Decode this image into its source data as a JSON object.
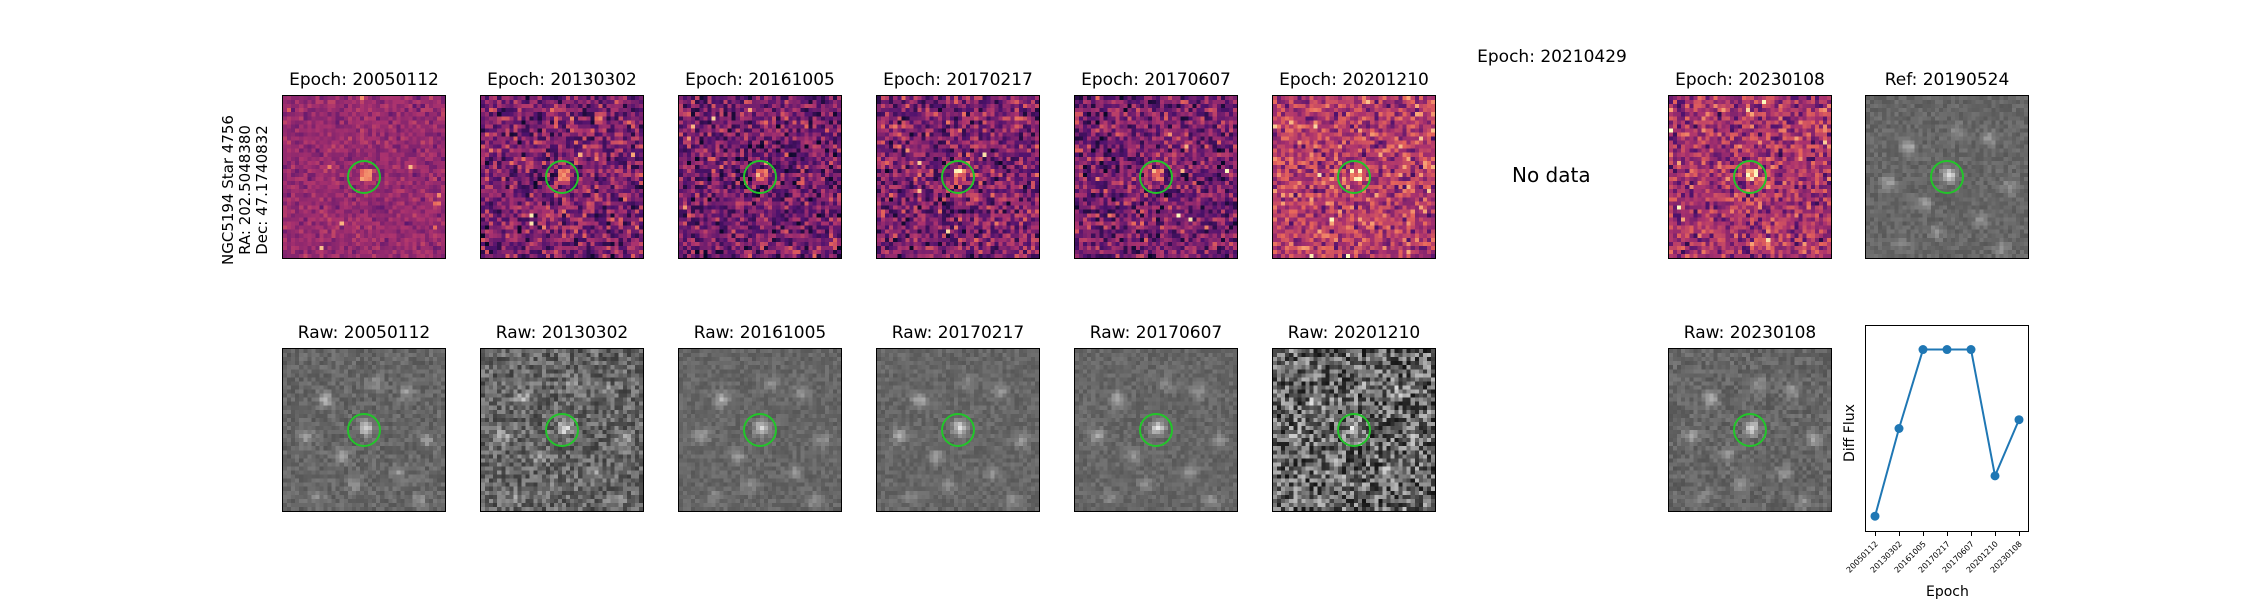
{
  "star_label": {
    "line1": "NGC5194 Star 4756",
    "line2": "RA: 202.5048380",
    "line3": "Dec: 47.1740832"
  },
  "top_row": [
    {
      "title": "Epoch: 20050112",
      "kind": "diff",
      "has_data": true
    },
    {
      "title": "Epoch: 20130302",
      "kind": "diff",
      "has_data": true
    },
    {
      "title": "Epoch: 20161005",
      "kind": "diff",
      "has_data": true
    },
    {
      "title": "Epoch: 20170217",
      "kind": "diff",
      "has_data": true
    },
    {
      "title": "Epoch: 20170607",
      "kind": "diff",
      "has_data": true
    },
    {
      "title": "Epoch: 20201210",
      "kind": "diff",
      "has_data": true
    },
    {
      "title": "Epoch: 20210429",
      "kind": "diff",
      "has_data": false,
      "message": "No data"
    },
    {
      "title": "Epoch: 20230108",
      "kind": "diff",
      "has_data": true
    },
    {
      "title": "Ref: 20190524",
      "kind": "ref",
      "has_data": true
    }
  ],
  "bottom_row": [
    {
      "title": "Raw: 20050112"
    },
    {
      "title": "Raw: 20130302"
    },
    {
      "title": "Raw: 20161005"
    },
    {
      "title": "Raw: 20170217"
    },
    {
      "title": "Raw: 20170607"
    },
    {
      "title": "Raw: 20201210"
    },
    {
      "title": "Raw: 20230108"
    }
  ],
  "colors": {
    "circle": "#22c52a",
    "line": "#1f77b4"
  },
  "chart_data": {
    "type": "line",
    "title": "",
    "xlabel": "Epoch",
    "ylabel": "Diff Flux",
    "categories": [
      "20050112",
      "20130302",
      "20161005",
      "20170217",
      "20170607",
      "20201210",
      "20230108"
    ],
    "series": [
      {
        "values": [
          0.05,
          0.55,
          1.0,
          1.0,
          1.0,
          0.28,
          0.6
        ]
      }
    ],
    "ylim": [
      0,
      1.1
    ],
    "grid": false
  }
}
